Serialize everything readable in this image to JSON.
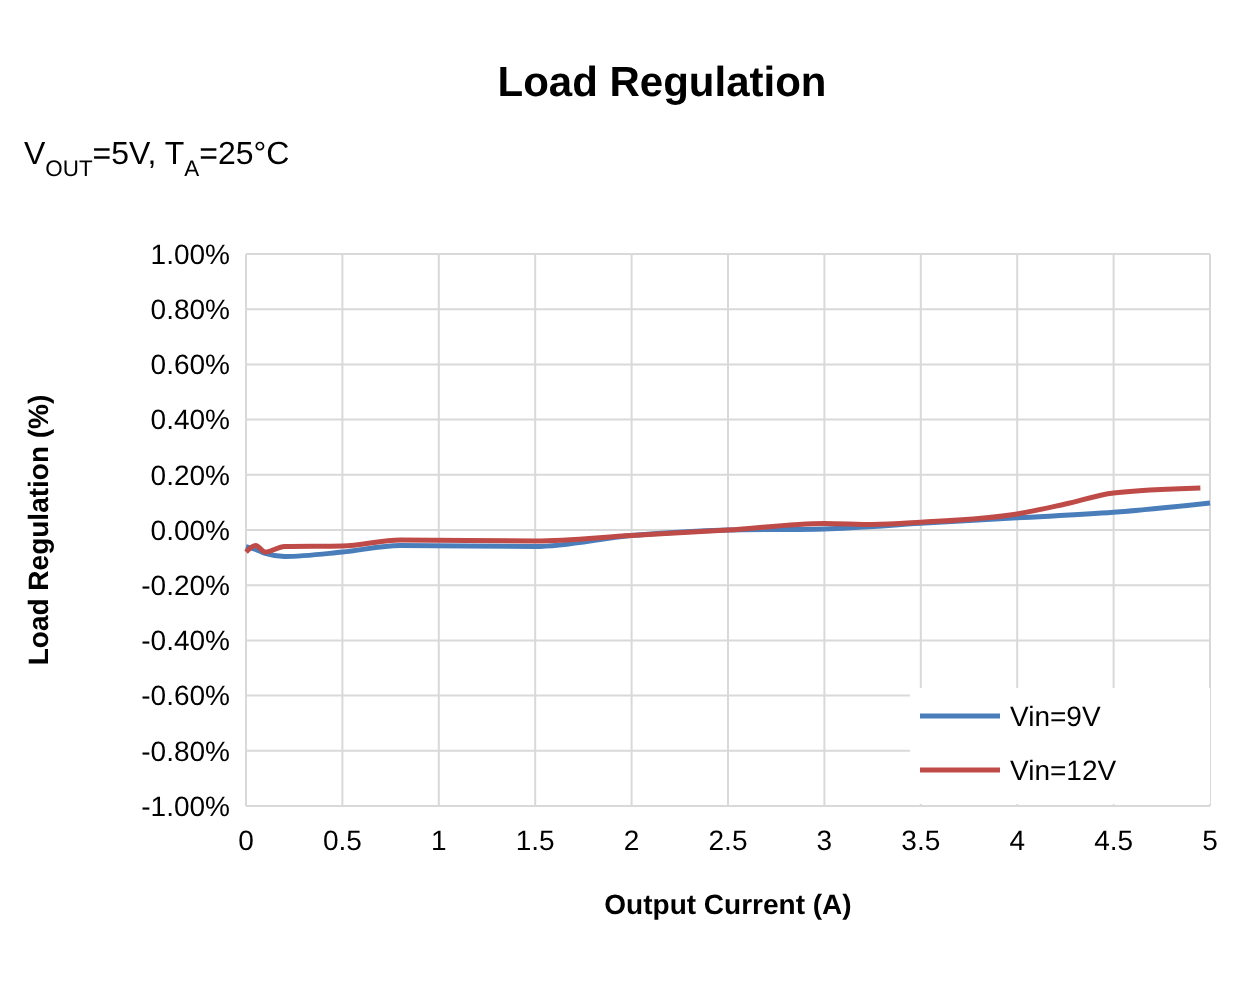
{
  "chart_data": {
    "type": "line",
    "title": "Load Regulation",
    "subtitle": "V$_{OUT}$=5V, T$_{A}$=25°C",
    "xlabel": "Output Current (A)",
    "ylabel": "Load Regulation (%)",
    "xlim": [
      0,
      5
    ],
    "xticks": [
      0,
      0.5,
      1,
      1.5,
      2,
      2.5,
      3,
      3.5,
      4,
      4.5,
      5
    ],
    "ylim": [
      -1,
      1
    ],
    "yticks": [
      {
        "value": -1,
        "label": "-1.00%"
      },
      {
        "value": -0.8,
        "label": "-0.80%"
      },
      {
        "value": -0.6,
        "label": "-0.60%"
      },
      {
        "value": -0.4,
        "label": "-0.40%"
      },
      {
        "value": -0.2,
        "label": "-0.20%"
      },
      {
        "value": 0,
        "label": "0.00%"
      },
      {
        "value": 0.2,
        "label": "0.20%"
      },
      {
        "value": 0.4,
        "label": "0.40%"
      },
      {
        "value": 0.6,
        "label": "0.60%"
      },
      {
        "value": 0.8,
        "label": "0.80%"
      },
      {
        "value": 1,
        "label": "1.00%"
      }
    ],
    "grid": true,
    "legend": "bottom right",
    "marker": "none",
    "line_style": "solid",
    "series": [
      {
        "name": "Vin=9V",
        "color": "#4a7ebb",
        "x": [
          0,
          0.05,
          0.1,
          0.2,
          0.5,
          0.8,
          1.5,
          2.0,
          2.5,
          3.0,
          3.5,
          4.0,
          4.5,
          5.0
        ],
        "values": [
          -0.06,
          -0.07,
          -0.085,
          -0.096,
          -0.08,
          -0.056,
          -0.06,
          -0.02,
          0,
          0.004,
          0.024,
          0.044,
          0.064,
          0.098
        ]
      },
      {
        "name": "Vin=12V",
        "color": "#be4b48",
        "x": [
          0,
          0.05,
          0.1,
          0.2,
          0.5,
          0.8,
          1.5,
          2.0,
          2.5,
          3.0,
          3.25,
          3.5,
          4.0,
          4.25,
          4.5,
          4.95
        ],
        "values": [
          -0.08,
          -0.056,
          -0.08,
          -0.06,
          -0.058,
          -0.036,
          -0.04,
          -0.02,
          0,
          0.024,
          0.02,
          0.028,
          0.058,
          0.094,
          0.134,
          0.152
        ]
      }
    ]
  }
}
